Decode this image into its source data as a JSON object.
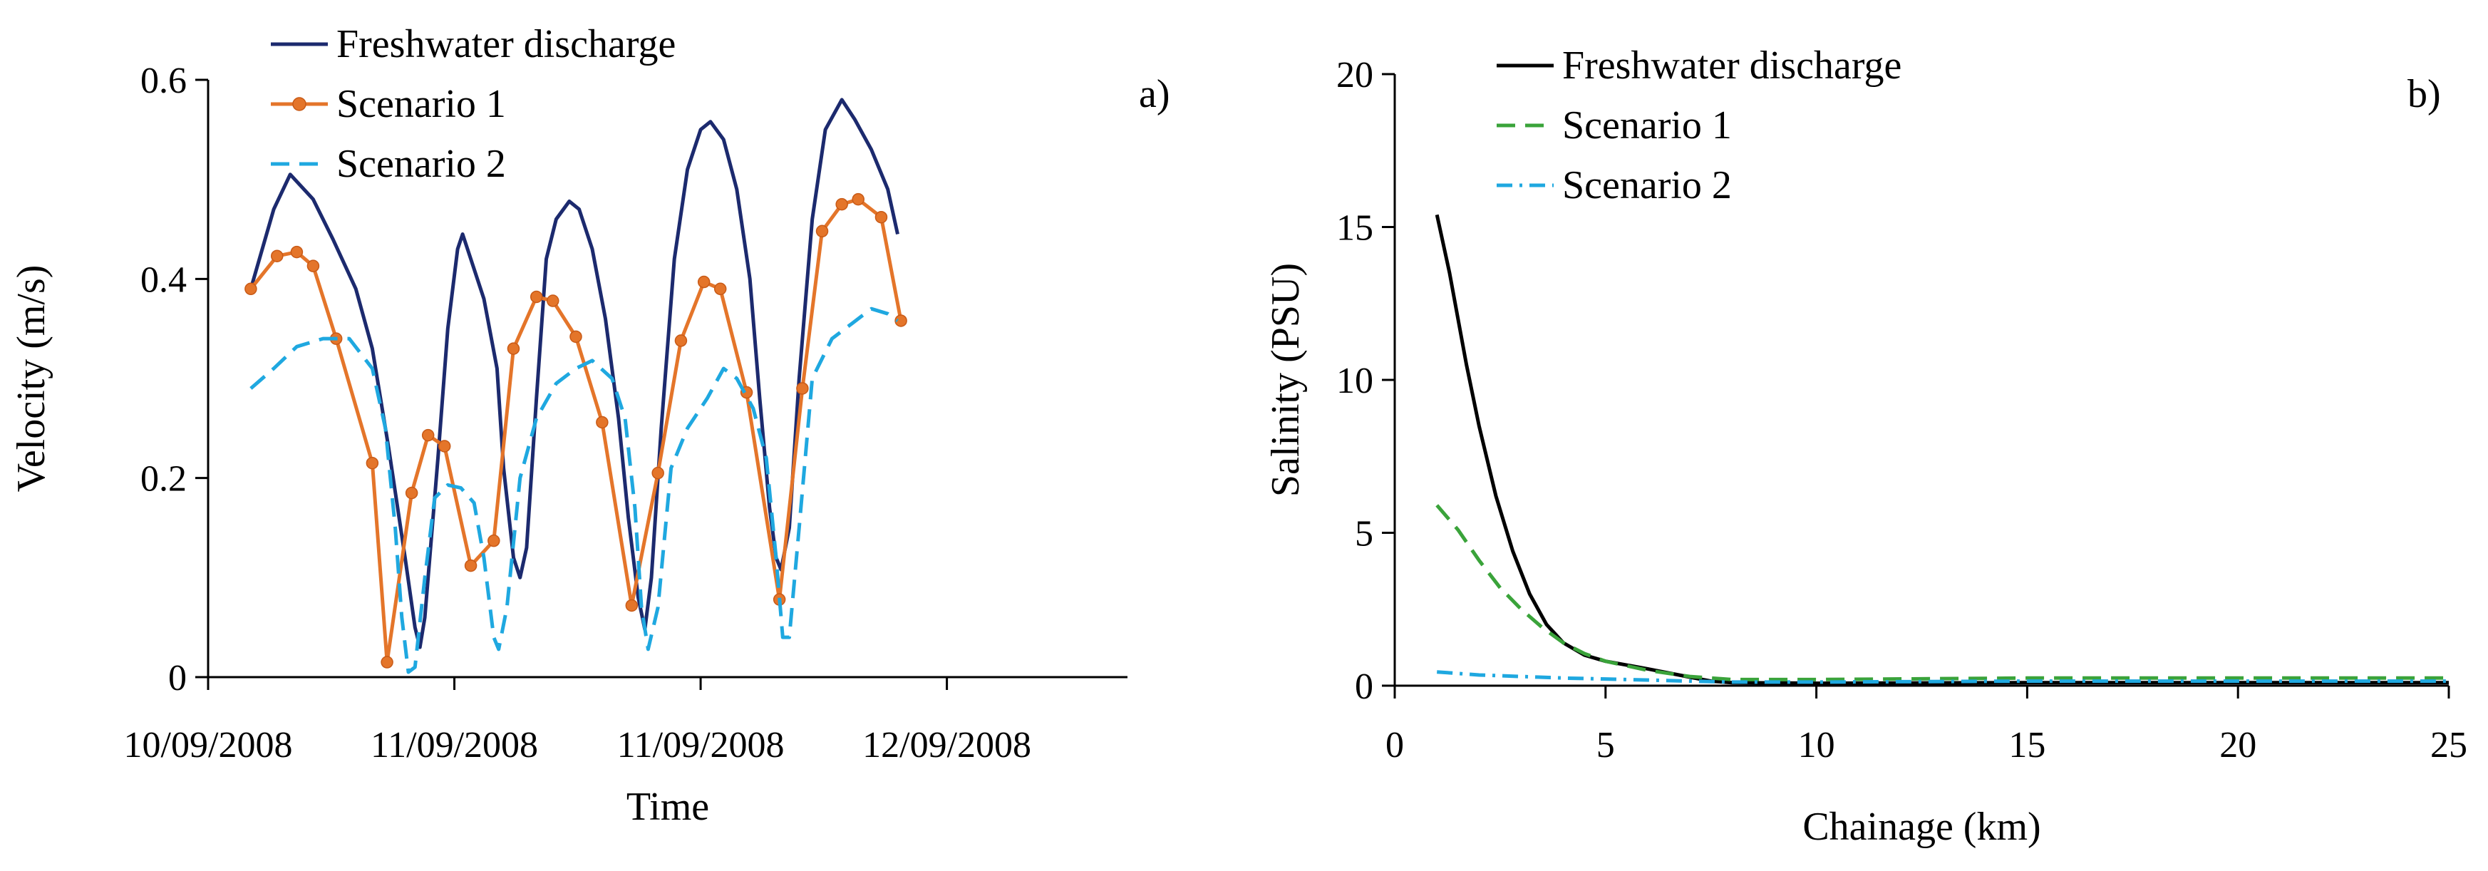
{
  "chart_data": [
    {
      "panel": "a)",
      "type": "line",
      "xlabel": "Time",
      "ylabel": "Velocity (m/s)",
      "x_unit": "days from 10/09/2008",
      "xlim": [
        0,
        2.8
      ],
      "ylim": [
        0,
        0.6
      ],
      "yticks": [
        0,
        0.2,
        0.4,
        0.6
      ],
      "ytick_labels": [
        "0",
        "0.2",
        "0.4",
        "0.6"
      ],
      "xticks": [
        0,
        0.75,
        1.5,
        2.25
      ],
      "xtick_labels": [
        "10/09/2008",
        "11/09/2008",
        "11/09/2008",
        "12/09/2008"
      ],
      "legend": [
        "Freshwater discharge",
        "Scenario 1",
        "Scenario 2"
      ],
      "series": [
        {
          "name": "Freshwater discharge",
          "color": "#1c2a6e",
          "style": "solid",
          "markers": false,
          "points": [
            [
              0.13,
              0.39
            ],
            [
              0.2,
              0.47
            ],
            [
              0.25,
              0.505
            ],
            [
              0.32,
              0.48
            ],
            [
              0.38,
              0.44
            ],
            [
              0.45,
              0.39
            ],
            [
              0.5,
              0.33
            ],
            [
              0.55,
              0.23
            ],
            [
              0.6,
              0.12
            ],
            [
              0.63,
              0.05
            ],
            [
              0.645,
              0.03
            ],
            [
              0.66,
              0.06
            ],
            [
              0.7,
              0.22
            ],
            [
              0.73,
              0.35
            ],
            [
              0.76,
              0.43
            ],
            [
              0.775,
              0.445
            ],
            [
              0.8,
              0.42
            ],
            [
              0.84,
              0.38
            ],
            [
              0.88,
              0.31
            ],
            [
              0.9,
              0.21
            ],
            [
              0.93,
              0.12
            ],
            [
              0.95,
              0.1
            ],
            [
              0.97,
              0.13
            ],
            [
              1.0,
              0.28
            ],
            [
              1.03,
              0.42
            ],
            [
              1.06,
              0.46
            ],
            [
              1.1,
              0.478
            ],
            [
              1.13,
              0.47
            ],
            [
              1.17,
              0.43
            ],
            [
              1.21,
              0.36
            ],
            [
              1.25,
              0.26
            ],
            [
              1.28,
              0.16
            ],
            [
              1.31,
              0.08
            ],
            [
              1.33,
              0.048
            ],
            [
              1.35,
              0.1
            ],
            [
              1.38,
              0.25
            ],
            [
              1.42,
              0.42
            ],
            [
              1.46,
              0.51
            ],
            [
              1.5,
              0.55
            ],
            [
              1.53,
              0.558
            ],
            [
              1.57,
              0.54
            ],
            [
              1.61,
              0.49
            ],
            [
              1.65,
              0.4
            ],
            [
              1.68,
              0.28
            ],
            [
              1.71,
              0.17
            ],
            [
              1.73,
              0.12
            ],
            [
              1.745,
              0.108
            ],
            [
              1.77,
              0.15
            ],
            [
              1.8,
              0.3
            ],
            [
              1.84,
              0.46
            ],
            [
              1.88,
              0.55
            ],
            [
              1.93,
              0.58
            ],
            [
              1.97,
              0.56
            ],
            [
              2.02,
              0.53
            ],
            [
              2.07,
              0.49
            ],
            [
              2.1,
              0.445
            ]
          ]
        },
        {
          "name": "Scenario 1",
          "color": "#e4752a",
          "style": "solid",
          "markers": true,
          "points": [
            [
              0.13,
              0.39
            ],
            [
              0.21,
              0.423
            ],
            [
              0.27,
              0.427
            ],
            [
              0.32,
              0.413
            ],
            [
              0.39,
              0.34
            ],
            [
              0.5,
              0.215
            ],
            [
              0.545,
              0.015
            ],
            [
              0.62,
              0.185
            ],
            [
              0.67,
              0.243
            ],
            [
              0.72,
              0.232
            ],
            [
              0.8,
              0.112
            ],
            [
              0.87,
              0.137
            ],
            [
              0.93,
              0.33
            ],
            [
              1.0,
              0.382
            ],
            [
              1.05,
              0.378
            ],
            [
              1.12,
              0.342
            ],
            [
              1.2,
              0.256
            ],
            [
              1.29,
              0.072
            ],
            [
              1.37,
              0.205
            ],
            [
              1.44,
              0.338
            ],
            [
              1.51,
              0.397
            ],
            [
              1.56,
              0.39
            ],
            [
              1.64,
              0.286
            ],
            [
              1.74,
              0.078
            ],
            [
              1.81,
              0.29
            ],
            [
              1.87,
              0.448
            ],
            [
              1.93,
              0.475
            ],
            [
              1.98,
              0.48
            ],
            [
              2.05,
              0.462
            ],
            [
              2.11,
              0.358
            ]
          ]
        },
        {
          "name": "Scenario 2",
          "color": "#1fa8e0",
          "style": "dashed",
          "markers": false,
          "points": [
            [
              0.13,
              0.29
            ],
            [
              0.2,
              0.31
            ],
            [
              0.27,
              0.332
            ],
            [
              0.35,
              0.34
            ],
            [
              0.43,
              0.34
            ],
            [
              0.5,
              0.31
            ],
            [
              0.54,
              0.25
            ],
            [
              0.57,
              0.15
            ],
            [
              0.59,
              0.06
            ],
            [
              0.61,
              0.005
            ],
            [
              0.63,
              0.01
            ],
            [
              0.66,
              0.1
            ],
            [
              0.69,
              0.18
            ],
            [
              0.73,
              0.193
            ],
            [
              0.77,
              0.19
            ],
            [
              0.81,
              0.175
            ],
            [
              0.84,
              0.12
            ],
            [
              0.87,
              0.04
            ],
            [
              0.885,
              0.028
            ],
            [
              0.91,
              0.07
            ],
            [
              0.95,
              0.2
            ],
            [
              1.0,
              0.26
            ],
            [
              1.06,
              0.295
            ],
            [
              1.12,
              0.31
            ],
            [
              1.17,
              0.318
            ],
            [
              1.23,
              0.3
            ],
            [
              1.27,
              0.26
            ],
            [
              1.3,
              0.17
            ],
            [
              1.32,
              0.07
            ],
            [
              1.34,
              0.028
            ],
            [
              1.37,
              0.07
            ],
            [
              1.41,
              0.21
            ],
            [
              1.46,
              0.25
            ],
            [
              1.52,
              0.28
            ],
            [
              1.57,
              0.31
            ],
            [
              1.61,
              0.3
            ],
            [
              1.66,
              0.27
            ],
            [
              1.7,
              0.22
            ],
            [
              1.73,
              0.12
            ],
            [
              1.75,
              0.04
            ],
            [
              1.77,
              0.04
            ],
            [
              1.8,
              0.15
            ],
            [
              1.84,
              0.3
            ],
            [
              1.9,
              0.34
            ],
            [
              1.96,
              0.355
            ],
            [
              2.02,
              0.37
            ],
            [
              2.07,
              0.365
            ],
            [
              2.1,
              0.358
            ]
          ]
        }
      ]
    },
    {
      "panel": "b)",
      "type": "line",
      "xlabel": "Chainage (km)",
      "ylabel": "Salinity (PSU)",
      "xlim": [
        0,
        25
      ],
      "ylim": [
        0,
        20
      ],
      "xticks": [
        0,
        5,
        10,
        15,
        20,
        25
      ],
      "xtick_labels": [
        "0",
        "5",
        "10",
        "15",
        "20",
        "25"
      ],
      "yticks": [
        0,
        5,
        10,
        15,
        20
      ],
      "ytick_labels": [
        "0",
        "5",
        "10",
        "15",
        "20"
      ],
      "legend": [
        "Freshwater discharge",
        "Scenario 1",
        "Scenario 2"
      ],
      "series": [
        {
          "name": "Freshwater discharge",
          "color": "#000000",
          "style": "solid",
          "points": [
            [
              1.0,
              15.4
            ],
            [
              1.3,
              13.5
            ],
            [
              1.7,
              10.5
            ],
            [
              2.0,
              8.5
            ],
            [
              2.4,
              6.2
            ],
            [
              2.8,
              4.4
            ],
            [
              3.2,
              3.0
            ],
            [
              3.6,
              2.0
            ],
            [
              4.0,
              1.4
            ],
            [
              4.5,
              1.0
            ],
            [
              5.0,
              0.8
            ],
            [
              6.0,
              0.55
            ],
            [
              7.0,
              0.28
            ],
            [
              7.5,
              0.15
            ],
            [
              8.0,
              0.1
            ],
            [
              10.0,
              0.08
            ],
            [
              15.0,
              0.1
            ],
            [
              20.0,
              0.1
            ],
            [
              25.0,
              0.1
            ]
          ]
        },
        {
          "name": "Scenario 1",
          "color": "#3aa33a",
          "style": "dashed",
          "points": [
            [
              1.0,
              5.9
            ],
            [
              1.5,
              5.1
            ],
            [
              2.0,
              4.1
            ],
            [
              2.5,
              3.2
            ],
            [
              3.0,
              2.5
            ],
            [
              3.5,
              1.9
            ],
            [
              4.0,
              1.4
            ],
            [
              4.5,
              1.05
            ],
            [
              5.0,
              0.8
            ],
            [
              6.0,
              0.5
            ],
            [
              7.0,
              0.3
            ],
            [
              8.0,
              0.2
            ],
            [
              10.0,
              0.2
            ],
            [
              15.0,
              0.25
            ],
            [
              20.0,
              0.25
            ],
            [
              25.0,
              0.25
            ]
          ]
        },
        {
          "name": "Scenario 2",
          "color": "#1fa8e0",
          "style": "dashdot",
          "points": [
            [
              1.0,
              0.45
            ],
            [
              2.0,
              0.35
            ],
            [
              3.0,
              0.3
            ],
            [
              4.0,
              0.25
            ],
            [
              5.0,
              0.22
            ],
            [
              7.0,
              0.15
            ],
            [
              8.0,
              0.12
            ],
            [
              10.0,
              0.12
            ],
            [
              15.0,
              0.15
            ],
            [
              20.0,
              0.15
            ],
            [
              25.0,
              0.15
            ]
          ]
        }
      ]
    }
  ]
}
